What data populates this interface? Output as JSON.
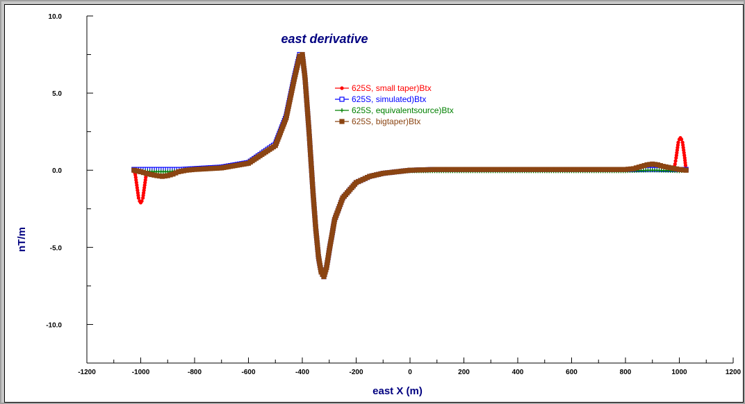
{
  "chart_data": {
    "type": "line",
    "title": "east derivative",
    "xlabel": "east X (m)",
    "ylabel": "nT/m",
    "xlim": [
      -1200,
      1200
    ],
    "ylim": [
      -12.5,
      10.0
    ],
    "x_ticks": [
      "-1200",
      "-1000",
      "-800",
      "-600",
      "-400",
      "-200",
      "0",
      "200",
      "400",
      "600",
      "800",
      "1000",
      "1200"
    ],
    "y_ticks": [
      "10.0",
      "5.0",
      "0.0",
      "-5.0",
      "-10.0"
    ],
    "legend_position": "top-center",
    "grid": false,
    "series": [
      {
        "name": "625S, small taper)Btx",
        "color": "#ff0000",
        "marker": "circle",
        "x": [
          -1025,
          -1020,
          -1016,
          -1012,
          -1008,
          -1004,
          -1000,
          -996,
          -992,
          -988,
          -984,
          -980,
          -976,
          -960,
          -900,
          -850,
          -800,
          -700,
          -600,
          -500,
          -460,
          -430,
          -410,
          -400,
          -390,
          -375,
          -360,
          -350,
          -340,
          -330,
          -320,
          -310,
          -300,
          -280,
          -250,
          -200,
          -150,
          -100,
          0,
          100,
          200,
          400,
          600,
          800,
          850,
          880,
          920,
          950,
          975,
          980,
          984,
          988,
          992,
          996,
          1000,
          1004,
          1008,
          1012,
          1016,
          1020,
          1025
        ],
        "y": [
          0.0,
          -0.3,
          -0.8,
          -1.3,
          -1.8,
          -2.0,
          -2.1,
          -2.0,
          -1.8,
          -1.3,
          -0.8,
          -0.3,
          0.0,
          0.05,
          0.05,
          0.05,
          0.1,
          0.2,
          0.5,
          1.7,
          3.5,
          6.0,
          7.5,
          7.5,
          6.0,
          2.5,
          -1.5,
          -3.8,
          -5.6,
          -6.6,
          -6.9,
          -6.3,
          -5.2,
          -3.2,
          -1.8,
          -0.8,
          -0.4,
          -0.2,
          0.0,
          0.05,
          0.05,
          0.05,
          0.05,
          0.05,
          0.05,
          0.05,
          0.05,
          0.05,
          0.05,
          0.1,
          0.4,
          0.8,
          1.3,
          1.8,
          2.0,
          2.1,
          2.0,
          1.8,
          1.3,
          0.8,
          0.0
        ]
      },
      {
        "name": "625S, simulated)Btx",
        "color": "#0000ff",
        "marker": "square",
        "x": [
          -1025,
          -1000,
          -950,
          -900,
          -850,
          -800,
          -700,
          -600,
          -500,
          -460,
          -430,
          -410,
          -400,
          -390,
          -375,
          -360,
          -350,
          -340,
          -330,
          -320,
          -310,
          -300,
          -280,
          -250,
          -200,
          -150,
          -100,
          0,
          100,
          200,
          400,
          600,
          800,
          900,
          1000,
          1025
        ],
        "y": [
          0.05,
          0.05,
          0.05,
          0.05,
          0.05,
          0.1,
          0.2,
          0.5,
          1.7,
          3.5,
          6.0,
          7.5,
          7.5,
          6.0,
          2.5,
          -1.5,
          -3.8,
          -5.6,
          -6.6,
          -6.9,
          -6.3,
          -5.2,
          -3.2,
          -1.8,
          -0.8,
          -0.4,
          -0.2,
          0.0,
          0.05,
          0.05,
          0.05,
          0.05,
          0.05,
          0.05,
          0.05,
          0.05
        ]
      },
      {
        "name": "625S,  equivalentsource)Btx",
        "color": "#008000",
        "marker": "plus",
        "x": [
          -1025,
          -1000,
          -950,
          -900,
          -850,
          -800,
          -700,
          -600,
          -500,
          -460,
          -430,
          -410,
          -400,
          -390,
          -375,
          -360,
          -350,
          -340,
          -330,
          -320,
          -310,
          -300,
          -280,
          -250,
          -200,
          -150,
          -100,
          0,
          100,
          200,
          400,
          600,
          800,
          900,
          1000,
          1025
        ],
        "y": [
          0.0,
          -0.05,
          -0.1,
          -0.1,
          -0.05,
          0.05,
          0.15,
          0.45,
          1.6,
          3.4,
          5.9,
          7.4,
          7.5,
          6.0,
          2.5,
          -1.5,
          -3.8,
          -5.6,
          -6.6,
          -6.9,
          -6.3,
          -5.2,
          -3.2,
          -1.8,
          -0.8,
          -0.4,
          -0.2,
          -0.05,
          -0.05,
          -0.05,
          -0.05,
          -0.05,
          -0.05,
          0.0,
          -0.05,
          0.0
        ]
      },
      {
        "name": "625S, bigtaper)Btx",
        "color": "#8b4513",
        "marker": "square",
        "x": [
          -1025,
          -1000,
          -970,
          -940,
          -920,
          -900,
          -880,
          -860,
          -830,
          -800,
          -700,
          -600,
          -500,
          -460,
          -430,
          -410,
          -400,
          -390,
          -375,
          -360,
          -350,
          -340,
          -330,
          -320,
          -310,
          -300,
          -280,
          -250,
          -200,
          -150,
          -100,
          0,
          100,
          200,
          400,
          600,
          800,
          830,
          860,
          880,
          900,
          920,
          940,
          970,
          1000,
          1025
        ],
        "y": [
          0.0,
          -0.1,
          -0.25,
          -0.35,
          -0.4,
          -0.35,
          -0.25,
          -0.1,
          0.0,
          0.05,
          0.15,
          0.45,
          1.6,
          3.4,
          5.9,
          7.4,
          7.5,
          6.0,
          2.5,
          -1.5,
          -3.8,
          -5.6,
          -6.6,
          -6.9,
          -6.3,
          -5.2,
          -3.2,
          -1.8,
          -0.8,
          -0.4,
          -0.2,
          0.0,
          0.05,
          0.05,
          0.05,
          0.05,
          0.05,
          0.1,
          0.25,
          0.35,
          0.4,
          0.35,
          0.25,
          0.15,
          0.05,
          0.0
        ]
      }
    ]
  }
}
